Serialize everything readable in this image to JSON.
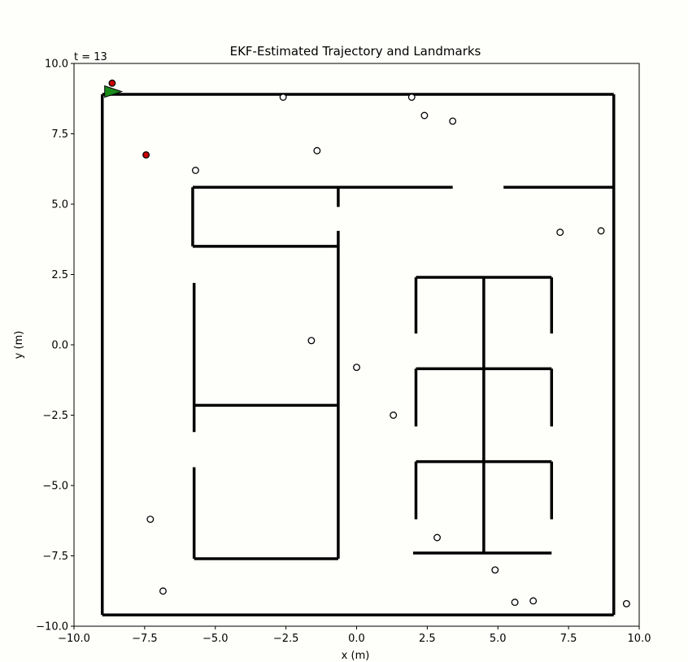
{
  "chart_data": {
    "type": "scatter",
    "title": "EKF-Estimated Trajectory and Landmarks",
    "time_label": "t = 13",
    "xlabel": "x (m)",
    "ylabel": "y (m)",
    "xlim": [
      -10,
      10
    ],
    "ylim": [
      -10,
      10
    ],
    "xticks": [
      -10,
      -7.5,
      -5,
      -2.5,
      0,
      2.5,
      5,
      7.5,
      10
    ],
    "yticks": [
      -10,
      -7.5,
      -5,
      -2.5,
      0,
      2.5,
      5,
      7.5,
      10
    ],
    "xtick_labels": [
      "−10.0",
      "−7.5",
      "−5.0",
      "−2.5",
      "0.0",
      "2.5",
      "5.0",
      "7.5",
      "10.0"
    ],
    "ytick_labels": [
      "−10.0",
      "−7.5",
      "−5.0",
      "−2.5",
      "0.0",
      "2.5",
      "5.0",
      "7.5",
      "10.0"
    ],
    "grid": false,
    "walls": [
      [
        [
          -9.0,
          -9.6
        ],
        [
          -9.0,
          8.9
        ]
      ],
      [
        [
          -9.0,
          8.9
        ],
        [
          9.1,
          8.9
        ]
      ],
      [
        [
          9.1,
          8.9
        ],
        [
          9.1,
          -9.6
        ]
      ],
      [
        [
          9.1,
          -9.6
        ],
        [
          -9.0,
          -9.6
        ]
      ],
      [
        [
          -5.8,
          5.6
        ],
        [
          3.4,
          5.6
        ]
      ],
      [
        [
          5.2,
          5.6
        ],
        [
          9.1,
          5.6
        ]
      ],
      [
        [
          -5.8,
          5.6
        ],
        [
          -5.8,
          3.5
        ]
      ],
      [
        [
          -5.8,
          3.5
        ],
        [
          -0.65,
          3.5
        ]
      ],
      [
        [
          -0.65,
          5.6
        ],
        [
          -0.65,
          4.9
        ]
      ],
      [
        [
          -0.65,
          4.05
        ],
        [
          -0.65,
          -7.6
        ]
      ],
      [
        [
          -5.75,
          2.2
        ],
        [
          -5.75,
          -3.1
        ]
      ],
      [
        [
          -5.75,
          -2.15
        ],
        [
          -0.65,
          -2.15
        ]
      ],
      [
        [
          -5.75,
          -4.35
        ],
        [
          -5.75,
          -7.6
        ]
      ],
      [
        [
          -5.75,
          -7.6
        ],
        [
          -0.65,
          -7.6
        ]
      ],
      [
        [
          2.1,
          2.4
        ],
        [
          6.9,
          2.4
        ]
      ],
      [
        [
          2.1,
          2.4
        ],
        [
          2.1,
          0.4
        ]
      ],
      [
        [
          6.9,
          2.4
        ],
        [
          6.9,
          0.4
        ]
      ],
      [
        [
          4.5,
          2.4
        ],
        [
          4.5,
          -7.4
        ]
      ],
      [
        [
          2.1,
          -0.85
        ],
        [
          6.9,
          -0.85
        ]
      ],
      [
        [
          2.1,
          -0.85
        ],
        [
          2.1,
          -2.9
        ]
      ],
      [
        [
          6.9,
          -0.85
        ],
        [
          6.9,
          -2.9
        ]
      ],
      [
        [
          2.1,
          -4.15
        ],
        [
          6.9,
          -4.15
        ]
      ],
      [
        [
          2.1,
          -4.15
        ],
        [
          2.1,
          -6.2
        ]
      ],
      [
        [
          6.9,
          -4.15
        ],
        [
          6.9,
          -6.2
        ]
      ],
      [
        [
          2.0,
          -7.4
        ],
        [
          6.9,
          -7.4
        ]
      ]
    ],
    "landmarks": [
      {
        "x": -2.6,
        "y": 8.8
      },
      {
        "x": 1.95,
        "y": 8.8
      },
      {
        "x": 2.4,
        "y": 8.15
      },
      {
        "x": 3.4,
        "y": 7.95
      },
      {
        "x": -1.4,
        "y": 6.9
      },
      {
        "x": -5.7,
        "y": 6.2
      },
      {
        "x": 7.2,
        "y": 4.0
      },
      {
        "x": 8.65,
        "y": 4.05
      },
      {
        "x": -1.6,
        "y": 0.15
      },
      {
        "x": 0.0,
        "y": -0.8
      },
      {
        "x": 1.3,
        "y": -2.5
      },
      {
        "x": -7.3,
        "y": -6.2
      },
      {
        "x": 2.85,
        "y": -6.85
      },
      {
        "x": -6.85,
        "y": -8.75
      },
      {
        "x": 4.9,
        "y": -8.0
      },
      {
        "x": 5.6,
        "y": -9.15
      },
      {
        "x": 6.25,
        "y": -9.1
      },
      {
        "x": 9.55,
        "y": -9.2
      }
    ],
    "observed_landmarks": [
      {
        "x": -8.65,
        "y": 9.3
      },
      {
        "x": -7.45,
        "y": 6.75
      }
    ],
    "robot": {
      "x": -8.8,
      "y": 9.0,
      "heading_deg": 0
    },
    "colors": {
      "background": "#fefefa",
      "wall": "#000000",
      "landmark_fill": "#ffffff",
      "observed_fill": "#cc0000",
      "robot_fill": "#1a8a1a"
    }
  }
}
